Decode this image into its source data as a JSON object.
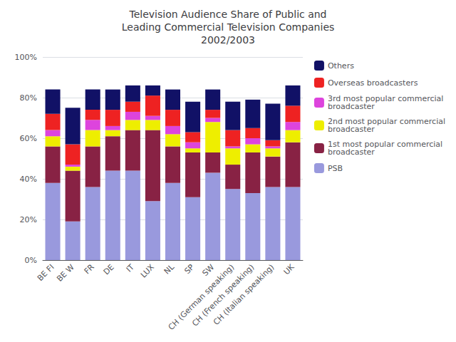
{
  "chart_data": {
    "type": "bar",
    "title": "Television Audience Share of Public and\nLeading Commercial Television Companies\n2002/2003",
    "categories": [
      "BE FI",
      "BE W",
      "FR",
      "DE",
      "IT",
      "LUX",
      "NL",
      "SP",
      "SW",
      "CH (German speaking)",
      "CH (French speaking)",
      "CH (Italian speaking)",
      "UK"
    ],
    "series": [
      {
        "name": "PSB",
        "color": "#9999dd",
        "values": [
          38,
          19,
          36,
          44,
          44,
          29,
          38,
          31,
          43,
          35,
          33,
          36,
          36
        ]
      },
      {
        "name": "1st most popular commercial\nbroadcaster",
        "color": "#882244",
        "values": [
          18,
          25,
          20,
          17,
          20,
          35,
          18,
          22,
          10,
          12,
          20,
          15,
          22
        ]
      },
      {
        "name": "2nd most popular commercial\nbroadcaster",
        "color": "#eeee00",
        "values": [
          5,
          2,
          8,
          3,
          5,
          5,
          6,
          2,
          15,
          8,
          4,
          4,
          6
        ]
      },
      {
        "name": "3rd most popular commercial\nbroadcaster",
        "color": "#dd44dd",
        "values": [
          3,
          1,
          5,
          2,
          4,
          2,
          4,
          3,
          2,
          1,
          3,
          1,
          4
        ]
      },
      {
        "name": "Overseas broadcasters",
        "color": "#ee2222",
        "values": [
          8,
          10,
          5,
          8,
          5,
          10,
          8,
          5,
          4,
          8,
          5,
          3,
          8
        ]
      },
      {
        "name": "Others",
        "color": "#111166",
        "values": [
          12,
          18,
          10,
          10,
          8,
          5,
          10,
          15,
          10,
          14,
          14,
          18,
          10
        ]
      }
    ],
    "ylim": [
      0,
      100
    ],
    "yticks": [
      {
        "value": 0,
        "label": "0%"
      },
      {
        "value": 20,
        "label": "20%"
      },
      {
        "value": 40,
        "label": "40%"
      },
      {
        "value": 60,
        "label": "60%"
      },
      {
        "value": 80,
        "label": "80%"
      },
      {
        "value": 100,
        "label": "100%"
      }
    ],
    "stacked": true,
    "grid": true,
    "legend": "right"
  }
}
